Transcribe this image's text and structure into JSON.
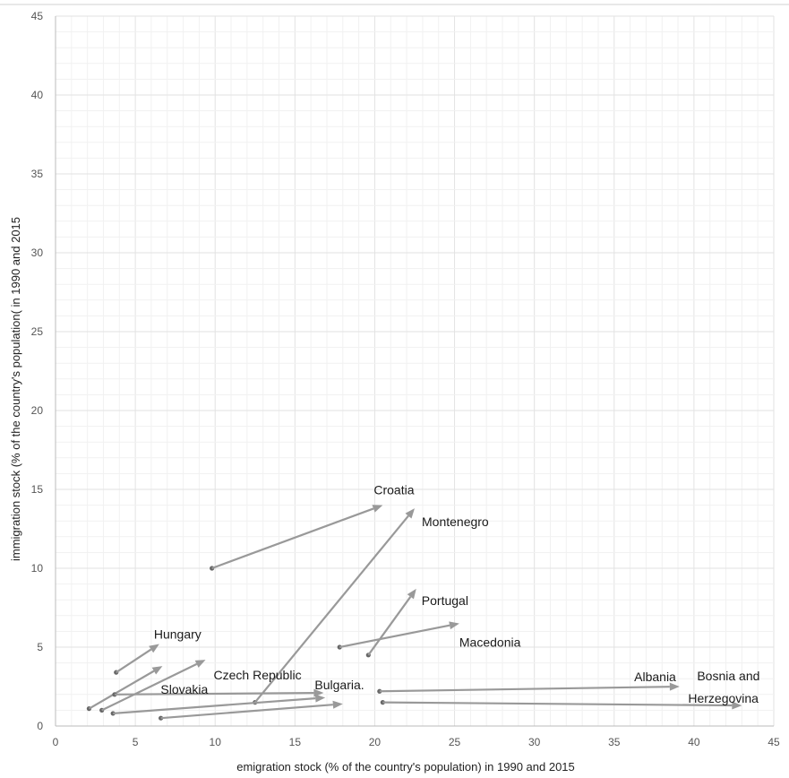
{
  "chart_data": {
    "type": "scatter",
    "title": "",
    "xlabel": "emigration stock (% of the country's population) in 1990 and 2015",
    "ylabel": "immigration stock (% of the country's population( in 1990 and 2015",
    "xlim": [
      0,
      45
    ],
    "ylim": [
      0,
      45
    ],
    "x_ticks": [
      0,
      5,
      10,
      15,
      20,
      25,
      30,
      35,
      40,
      45
    ],
    "y_ticks": [
      0,
      5,
      10,
      15,
      20,
      25,
      30,
      35,
      40,
      45
    ],
    "grid": true,
    "arrow_color": "#999999",
    "series": [
      {
        "label": "Croatia",
        "x1990": 9.8,
        "y1990": 10.0,
        "x2015": 20.5,
        "y2015": 14.0
      },
      {
        "label": "Montenegro",
        "x1990": 12.5,
        "y1990": 1.5,
        "x2015": 22.5,
        "y2015": 13.8
      },
      {
        "label": "Portugal",
        "x1990": 19.6,
        "y1990": 4.5,
        "x2015": 22.6,
        "y2015": 8.7
      },
      {
        "label": "Macedonia",
        "x1990": 17.8,
        "y1990": 5.0,
        "x2015": 25.3,
        "y2015": 6.5
      },
      {
        "label": "Hungary",
        "x1990": 3.8,
        "y1990": 3.4,
        "x2015": 6.5,
        "y2015": 5.2
      },
      {
        "label": "Czech Republic",
        "x1990": 2.9,
        "y1990": 1.0,
        "x2015": 9.4,
        "y2015": 4.2
      },
      {
        "label": "Slovakia",
        "x1990": 2.1,
        "y1990": 1.1,
        "x2015": 6.7,
        "y2015": 3.8
      },
      {
        "label": "Bulgaria.",
        "x1990": 3.7,
        "y1990": 2.0,
        "x2015": 16.8,
        "y2015": 2.1
      },
      {
        "label": "",
        "x1990": 3.6,
        "y1990": 0.8,
        "x2015": 16.9,
        "y2015": 1.8
      },
      {
        "label": "",
        "x1990": 6.6,
        "y1990": 0.5,
        "x2015": 18.0,
        "y2015": 1.4
      },
      {
        "label": "Albania",
        "x1990": 20.3,
        "y1990": 2.2,
        "x2015": 39.1,
        "y2015": 2.5
      },
      {
        "label": "Bosnia and Herzegovina",
        "x1990": 20.5,
        "y1990": 1.5,
        "x2015": 43.0,
        "y2015": 1.3
      }
    ]
  }
}
